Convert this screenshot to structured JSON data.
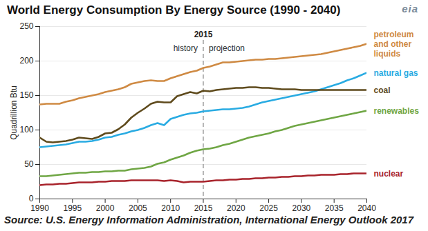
{
  "chart_data": {
    "type": "line",
    "title": "World Energy Consumption By Energy Source (1990 - 2040)",
    "logo": "eia",
    "y_label": "Quadrillion Btu",
    "caption": "Source: U.S. Energy Information Administration, International Energy Outlook 2017",
    "annotations": [
      {
        "text": "2015",
        "x": 2015
      },
      {
        "text": "history",
        "x": 2015
      },
      {
        "text": "projection",
        "x": 2015
      }
    ],
    "x": [
      1990,
      1991,
      1992,
      1993,
      1994,
      1995,
      1996,
      1997,
      1998,
      1999,
      2000,
      2001,
      2002,
      2003,
      2004,
      2005,
      2006,
      2007,
      2008,
      2009,
      2010,
      2011,
      2012,
      2013,
      2014,
      2015,
      2016,
      2017,
      2018,
      2019,
      2020,
      2021,
      2022,
      2023,
      2024,
      2025,
      2026,
      2027,
      2028,
      2029,
      2030,
      2031,
      2032,
      2033,
      2034,
      2035,
      2036,
      2037,
      2038,
      2039,
      2040
    ],
    "xlim": [
      1990,
      2040
    ],
    "xticks": [
      1990,
      1995,
      2000,
      2005,
      2010,
      2015,
      2020,
      2025,
      2030,
      2035,
      2040
    ],
    "ylim": [
      0,
      250
    ],
    "yticks": [
      0,
      50,
      100,
      150,
      200,
      250
    ],
    "grid": "y",
    "series": [
      {
        "name": "petroleum and other liquids",
        "color": "#cf8a43",
        "values": [
          137,
          138,
          138,
          138,
          141,
          143,
          146,
          148,
          150,
          152,
          155,
          157,
          159,
          162,
          167,
          169,
          171,
          172,
          171,
          171,
          175,
          178,
          181,
          184,
          186,
          190,
          192,
          195,
          198,
          198,
          199,
          200,
          201,
          202,
          202,
          203,
          203,
          204,
          205,
          206,
          207,
          208,
          209,
          210,
          212,
          214,
          216,
          218,
          220,
          222,
          225
        ]
      },
      {
        "name": "natural gas",
        "color": "#29abe2",
        "values": [
          75,
          76,
          77,
          78,
          79,
          81,
          83,
          83,
          84,
          86,
          89,
          90,
          93,
          95,
          98,
          100,
          103,
          107,
          110,
          107,
          116,
          119,
          122,
          124,
          125,
          127,
          128,
          129,
          130,
          130,
          131,
          132,
          134,
          137,
          140,
          142,
          144,
          146,
          148,
          150,
          152,
          154,
          156,
          159,
          162,
          165,
          168,
          172,
          175,
          179,
          183
        ]
      },
      {
        "name": "coal",
        "color": "#5e4a1c",
        "values": [
          89,
          83,
          82,
          83,
          84,
          86,
          89,
          88,
          87,
          90,
          95,
          96,
          101,
          108,
          118,
          125,
          131,
          138,
          141,
          140,
          140,
          149,
          152,
          155,
          153,
          157,
          156,
          158,
          159,
          160,
          161,
          161,
          162,
          162,
          161,
          161,
          160,
          159,
          159,
          159,
          158,
          158,
          158,
          158,
          158,
          158,
          158,
          158,
          158,
          158,
          158
        ]
      },
      {
        "name": "renewables",
        "color": "#6fa644",
        "values": [
          33,
          33,
          34,
          35,
          36,
          37,
          38,
          38,
          39,
          39,
          40,
          40,
          41,
          41,
          43,
          44,
          45,
          47,
          51,
          53,
          57,
          60,
          63,
          67,
          70,
          72,
          73,
          75,
          78,
          80,
          83,
          86,
          89,
          91,
          93,
          95,
          98,
          100,
          103,
          106,
          108,
          110,
          112,
          114,
          116,
          118,
          120,
          122,
          124,
          126,
          128
        ]
      },
      {
        "name": "nuclear",
        "color": "#a8232b",
        "values": [
          20,
          21,
          21,
          22,
          22,
          23,
          24,
          24,
          24,
          25,
          25,
          26,
          26,
          26,
          27,
          27,
          27,
          27,
          27,
          26,
          27,
          26,
          24,
          25,
          25,
          25,
          26,
          27,
          27,
          28,
          28,
          29,
          29,
          30,
          30,
          31,
          31,
          32,
          32,
          33,
          33,
          34,
          34,
          35,
          35,
          35,
          36,
          36,
          37,
          37,
          37
        ]
      }
    ]
  }
}
